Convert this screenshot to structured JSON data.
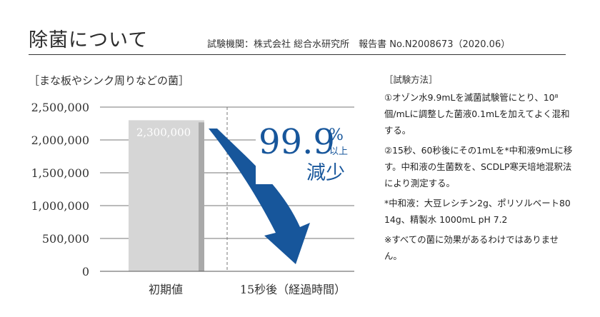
{
  "header": {
    "title": "除菌について",
    "source": "試験機関：株式会社 総合水研究所　報告書 No.N2008673（2020.06）"
  },
  "chart_data": {
    "type": "bar",
    "title": "［まな板やシンク周りなどの菌］",
    "categories": [
      "初期値",
      "15秒後（経過時間）"
    ],
    "values": [
      2300000,
      0
    ],
    "value_labels": [
      "2,300,000",
      ""
    ],
    "ylim": [
      0,
      2500000
    ],
    "yticks": [
      0,
      500000,
      1000000,
      1500000,
      2000000,
      2500000
    ],
    "ytick_labels": [
      "0",
      "500,000",
      "1,000,000",
      "1,500,000",
      "2,000,000",
      "2,500,000"
    ],
    "grid": true,
    "annotation": {
      "percent": "99.9",
      "percent_sign": "%",
      "qualifier": "以上",
      "label": "減少"
    },
    "colors": {
      "bar": "#d6d6d6",
      "bar_side": "#a9a9a9",
      "arrow": "#17569b",
      "grid": "#777777"
    }
  },
  "method": {
    "heading": "［試験方法］",
    "paragraphs": [
      "①オゾン水9.9mLを滅菌試験管にとり、10⁸個/mLに調整した菌液0.1mLを加えてよく混和する。",
      "②15秒、60秒後にその1mLを*中和液9mLに移す。中和液の生菌数を、SCDLP寒天培地混釈法により測定する。",
      "*中和液：大豆レシチン2g、ポリソルベート80 14g、精製水 1000mL pH 7.2",
      "※すべての菌に効果があるわけではありません。"
    ]
  }
}
